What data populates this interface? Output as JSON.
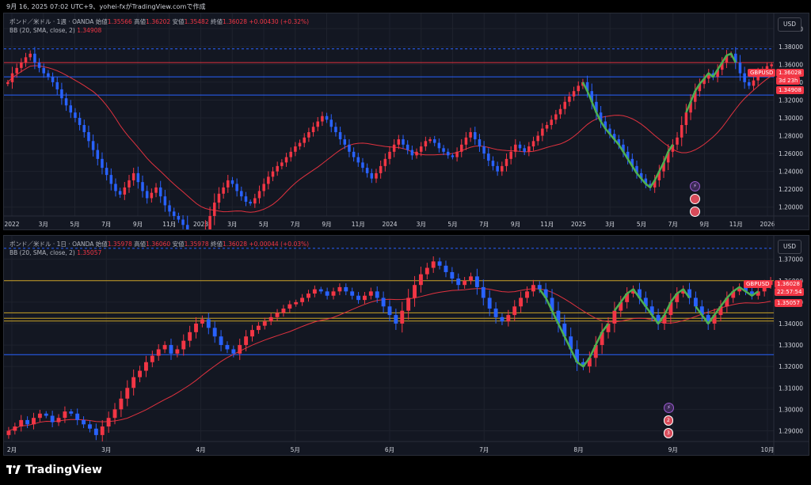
{
  "caption": "9月 16, 2025 07:02 UTC+9、yohei-fxがTradingView.comで作成",
  "footer": {
    "brand": "TradingView",
    "icon": "tradingview-logo-icon"
  },
  "colors": {
    "bg": "#131722",
    "grid": "#1e222d",
    "up": "#f23645",
    "down": "#2962ff",
    "sma": "#e0323f",
    "hline_blue": "#2962ff",
    "hline_orange": "#c9a227",
    "pattern": "#4caf50",
    "axis_text": "#d1d4dc"
  },
  "charts": [
    {
      "id": "weekly",
      "header": {
        "title": "ポンド／米ドル · 1週 · OANDA",
        "open_label": "始値",
        "open": "1.35566",
        "high_label": "高値",
        "high": "1.36202",
        "low_label": "安値",
        "low": "1.35482",
        "close_label": "終値",
        "close": "1.36028",
        "change": "+0.00430 (+0.32%)"
      },
      "indicator": {
        "label": "BB (20, SMA, close, 2)",
        "value": "1.34908"
      },
      "currency_button": "USD",
      "price_tags": {
        "symbol": "GBPUSD",
        "price": "1.36028",
        "countdown": "3d 23h",
        "bb": "1.34908"
      }
    },
    {
      "id": "daily",
      "header": {
        "title": "ポンド／米ドル · 1日 · OANDA",
        "open_label": "始値",
        "open": "1.35978",
        "high_label": "高値",
        "high": "1.36060",
        "low_label": "安値",
        "low": "1.35978",
        "close_label": "終値",
        "close": "1.36028",
        "change": "+0.00044 (+0.03%)"
      },
      "indicator": {
        "label": "BB (20, SMA, close, 2)",
        "value": "1.35057"
      },
      "currency_button": "USD",
      "price_tags": {
        "symbol": "GBPUSD",
        "price": "1.36028",
        "countdown": "22:57:54",
        "bb": "1.35057"
      }
    }
  ],
  "chart_data": [
    {
      "type": "candlestick",
      "timeframe": "1週",
      "ylim": [
        1.19,
        1.41
      ],
      "y_ticks": [
        "1.40000",
        "1.38000",
        "1.36000",
        "1.34000",
        "1.32000",
        "1.30000",
        "1.28000",
        "1.26000",
        "1.24000",
        "1.22000",
        "1.20000"
      ],
      "x_ticks": [
        "2022",
        "3月",
        "5月",
        "7月",
        "9月",
        "11月",
        "2023",
        "3月",
        "5月",
        "7月",
        "9月",
        "11月",
        "2024",
        "3月",
        "5月",
        "7月",
        "9月",
        "11月",
        "2025",
        "3月",
        "5月",
        "7月",
        "9月",
        "11月",
        "2026"
      ],
      "grid": true,
      "closes": [
        1.34,
        1.35,
        1.356,
        1.362,
        1.368,
        1.372,
        1.362,
        1.356,
        1.35,
        1.346,
        1.34,
        1.332,
        1.322,
        1.314,
        1.306,
        1.3,
        1.292,
        1.284,
        1.274,
        1.264,
        1.254,
        1.244,
        1.236,
        1.226,
        1.218,
        1.214,
        1.222,
        1.23,
        1.238,
        1.228,
        1.218,
        1.21,
        1.216,
        1.222,
        1.212,
        1.202,
        1.195,
        1.19,
        1.186,
        1.18,
        1.165,
        1.155,
        1.15,
        1.16,
        1.175,
        1.19,
        1.205,
        1.215,
        1.222,
        1.23,
        1.226,
        1.218,
        1.212,
        1.206,
        1.204,
        1.21,
        1.218,
        1.226,
        1.234,
        1.24,
        1.246,
        1.25,
        1.256,
        1.262,
        1.268,
        1.272,
        1.278,
        1.284,
        1.29,
        1.296,
        1.302,
        1.298,
        1.29,
        1.284,
        1.276,
        1.27,
        1.262,
        1.256,
        1.25,
        1.244,
        1.238,
        1.232,
        1.238,
        1.246,
        1.254,
        1.262,
        1.27,
        1.276,
        1.27,
        1.264,
        1.258,
        1.262,
        1.268,
        1.274,
        1.276,
        1.272,
        1.266,
        1.262,
        1.258,
        1.256,
        1.262,
        1.27,
        1.278,
        1.284,
        1.276,
        1.268,
        1.26,
        1.252,
        1.246,
        1.24,
        1.246,
        1.254,
        1.262,
        1.27,
        1.266,
        1.262,
        1.268,
        1.274,
        1.28,
        1.288,
        1.292,
        1.298,
        1.304,
        1.31,
        1.318,
        1.324,
        1.33,
        1.336,
        1.34,
        1.33,
        1.318,
        1.306,
        1.296,
        1.288,
        1.282,
        1.276,
        1.27,
        1.262,
        1.254,
        1.246,
        1.238,
        1.232,
        1.226,
        1.222,
        1.23,
        1.24,
        1.25,
        1.262,
        1.27,
        1.278,
        1.292,
        1.306,
        1.318,
        1.33,
        1.338,
        1.344,
        1.35,
        1.346,
        1.354,
        1.362,
        1.37,
        1.372,
        1.362,
        1.35,
        1.34,
        1.336,
        1.342,
        1.35,
        1.354,
        1.358,
        1.36
      ],
      "bb_basis": "20-period SMA (red line)",
      "horizontal_lines": [
        1.3774,
        1.362,
        1.346,
        1.3256
      ],
      "last_price": 1.36028,
      "bb_value": 1.34908
    },
    {
      "type": "candlestick",
      "timeframe": "1日",
      "ylim": [
        1.285,
        1.378
      ],
      "y_ticks": [
        "1.37000",
        "1.36000",
        "1.35000",
        "1.34000",
        "1.33000",
        "1.32000",
        "1.31000",
        "1.30000",
        "1.29000"
      ],
      "x_ticks": [
        "2月",
        "3月",
        "4月",
        "5月",
        "6月",
        "7月",
        "8月",
        "9月",
        "10月"
      ],
      "grid": true,
      "closes": [
        1.29,
        1.292,
        1.295,
        1.293,
        1.296,
        1.298,
        1.297,
        1.294,
        1.296,
        1.299,
        1.298,
        1.295,
        1.293,
        1.291,
        1.288,
        1.292,
        1.296,
        1.3,
        1.305,
        1.31,
        1.315,
        1.318,
        1.322,
        1.325,
        1.328,
        1.33,
        1.326,
        1.328,
        1.332,
        1.336,
        1.34,
        1.342,
        1.338,
        1.334,
        1.33,
        1.328,
        1.326,
        1.33,
        1.334,
        1.337,
        1.339,
        1.341,
        1.343,
        1.345,
        1.347,
        1.349,
        1.35,
        1.352,
        1.354,
        1.356,
        1.355,
        1.353,
        1.355,
        1.357,
        1.355,
        1.353,
        1.351,
        1.353,
        1.355,
        1.352,
        1.348,
        1.344,
        1.34,
        1.346,
        1.352,
        1.358,
        1.363,
        1.366,
        1.369,
        1.367,
        1.364,
        1.361,
        1.358,
        1.36,
        1.362,
        1.357,
        1.352,
        1.347,
        1.343,
        1.341,
        1.344,
        1.348,
        1.352,
        1.355,
        1.358,
        1.356,
        1.352,
        1.346,
        1.34,
        1.334,
        1.328,
        1.322,
        1.32,
        1.324,
        1.33,
        1.336,
        1.34,
        1.346,
        1.35,
        1.354,
        1.356,
        1.352,
        1.348,
        1.344,
        1.34,
        1.344,
        1.35,
        1.354,
        1.356,
        1.352,
        1.348,
        1.344,
        1.34,
        1.344,
        1.348,
        1.352,
        1.355,
        1.357,
        1.355,
        1.353,
        1.355,
        1.358,
        1.36
      ],
      "bb_basis": "20-period SMA (red line)",
      "horizontal_lines": [
        1.3751,
        1.36,
        1.345,
        1.3425,
        1.3412,
        1.3255
      ],
      "last_price": 1.36028,
      "bb_value": 1.35057
    }
  ]
}
